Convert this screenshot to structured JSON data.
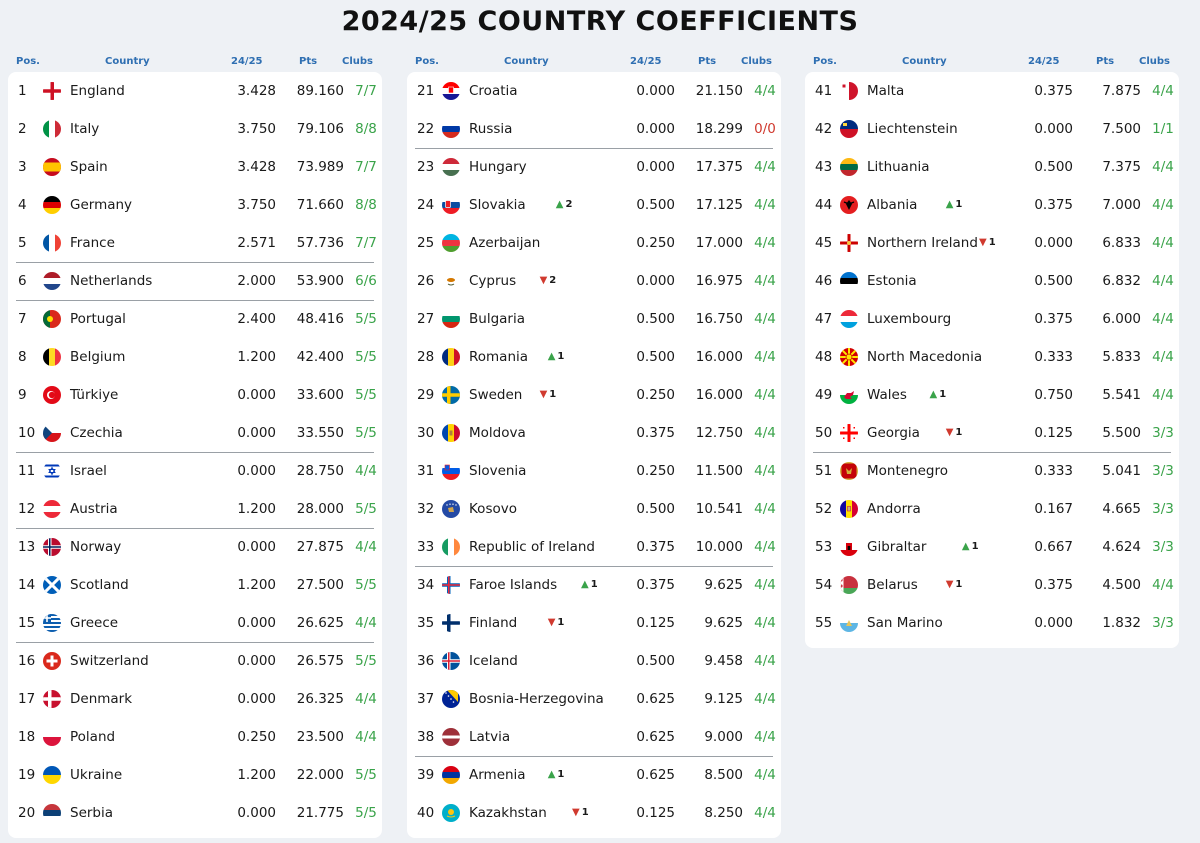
{
  "title": "2024/25 COUNTRY COEFFICIENTS",
  "headers": {
    "pos": "Pos.",
    "country": "Country",
    "season": "24/25",
    "pts": "Pts",
    "clubs": "Clubs"
  },
  "columns": [
    {
      "rows": [
        {
          "pos": "1",
          "flag": "england",
          "name": "England",
          "move": "",
          "coef": "3.428",
          "pts": "89.160",
          "clubs": "7/7"
        },
        {
          "pos": "2",
          "flag": "italy",
          "name": "Italy",
          "move": "",
          "coef": "3.750",
          "pts": "79.106",
          "clubs": "8/8"
        },
        {
          "pos": "3",
          "flag": "spain",
          "name": "Spain",
          "move": "",
          "coef": "3.428",
          "pts": "73.989",
          "clubs": "7/7"
        },
        {
          "pos": "4",
          "flag": "germany",
          "name": "Germany",
          "move": "",
          "coef": "3.750",
          "pts": "71.660",
          "clubs": "8/8"
        },
        {
          "pos": "5",
          "flag": "france",
          "name": "France",
          "move": "",
          "coef": "2.571",
          "pts": "57.736",
          "clubs": "7/7",
          "sep": true
        },
        {
          "pos": "6",
          "flag": "netherlands",
          "name": "Netherlands",
          "move": "",
          "coef": "2.000",
          "pts": "53.900",
          "clubs": "6/6",
          "sep": true
        },
        {
          "pos": "7",
          "flag": "portugal",
          "name": "Portugal",
          "move": "",
          "coef": "2.400",
          "pts": "48.416",
          "clubs": "5/5"
        },
        {
          "pos": "8",
          "flag": "belgium",
          "name": "Belgium",
          "move": "",
          "coef": "1.200",
          "pts": "42.400",
          "clubs": "5/5"
        },
        {
          "pos": "9",
          "flag": "turkiye",
          "name": "Türkiye",
          "move": "",
          "coef": "0.000",
          "pts": "33.600",
          "clubs": "5/5"
        },
        {
          "pos": "10",
          "flag": "czechia",
          "name": "Czechia",
          "move": "",
          "coef": "0.000",
          "pts": "33.550",
          "clubs": "5/5",
          "sep": true
        },
        {
          "pos": "11",
          "flag": "israel",
          "name": "Israel",
          "move": "",
          "coef": "0.000",
          "pts": "28.750",
          "clubs": "4/4"
        },
        {
          "pos": "12",
          "flag": "austria",
          "name": "Austria",
          "move": "",
          "coef": "1.200",
          "pts": "28.000",
          "clubs": "5/5",
          "sep": true
        },
        {
          "pos": "13",
          "flag": "norway",
          "name": "Norway",
          "move": "",
          "coef": "0.000",
          "pts": "27.875",
          "clubs": "4/4"
        },
        {
          "pos": "14",
          "flag": "scotland",
          "name": "Scotland",
          "move": "",
          "coef": "1.200",
          "pts": "27.500",
          "clubs": "5/5"
        },
        {
          "pos": "15",
          "flag": "greece",
          "name": "Greece",
          "move": "",
          "coef": "0.000",
          "pts": "26.625",
          "clubs": "4/4",
          "sep": true
        },
        {
          "pos": "16",
          "flag": "switzerland",
          "name": "Switzerland",
          "move": "",
          "coef": "0.000",
          "pts": "26.575",
          "clubs": "5/5"
        },
        {
          "pos": "17",
          "flag": "denmark",
          "name": "Denmark",
          "move": "",
          "coef": "0.000",
          "pts": "26.325",
          "clubs": "4/4"
        },
        {
          "pos": "18",
          "flag": "poland",
          "name": "Poland",
          "move": "",
          "coef": "0.250",
          "pts": "23.500",
          "clubs": "4/4"
        },
        {
          "pos": "19",
          "flag": "ukraine",
          "name": "Ukraine",
          "move": "",
          "coef": "1.200",
          "pts": "22.000",
          "clubs": "5/5"
        },
        {
          "pos": "20",
          "flag": "serbia",
          "name": "Serbia",
          "move": "",
          "coef": "0.000",
          "pts": "21.775",
          "clubs": "5/5"
        }
      ]
    },
    {
      "rows": [
        {
          "pos": "21",
          "flag": "croatia",
          "name": "Croatia",
          "move": "",
          "coef": "0.000",
          "pts": "21.150",
          "clubs": "4/4"
        },
        {
          "pos": "22",
          "flag": "russia",
          "name": "Russia",
          "move": "",
          "coef": "0.000",
          "pts": "18.299",
          "clubs": "0/0",
          "sep": true
        },
        {
          "pos": "23",
          "flag": "hungary",
          "name": "Hungary",
          "move": "",
          "coef": "0.000",
          "pts": "17.375",
          "clubs": "4/4"
        },
        {
          "pos": "24",
          "flag": "slovakia",
          "name": "Slovakia",
          "move": "up",
          "moveval": "2",
          "coef": "0.500",
          "pts": "17.125",
          "clubs": "4/4"
        },
        {
          "pos": "25",
          "flag": "azerbaijan",
          "name": "Azerbaijan",
          "move": "",
          "coef": "0.250",
          "pts": "17.000",
          "clubs": "4/4"
        },
        {
          "pos": "26",
          "flag": "cyprus",
          "name": "Cyprus",
          "move": "down",
          "moveval": "2",
          "coef": "0.000",
          "pts": "16.975",
          "clubs": "4/4"
        },
        {
          "pos": "27",
          "flag": "bulgaria",
          "name": "Bulgaria",
          "move": "",
          "coef": "0.500",
          "pts": "16.750",
          "clubs": "4/4"
        },
        {
          "pos": "28",
          "flag": "romania",
          "name": "Romania",
          "move": "up",
          "moveval": "1",
          "coef": "0.500",
          "pts": "16.000",
          "clubs": "4/4"
        },
        {
          "pos": "29",
          "flag": "sweden",
          "name": "Sweden",
          "move": "down",
          "moveval": "1",
          "coef": "0.250",
          "pts": "16.000",
          "clubs": "4/4"
        },
        {
          "pos": "30",
          "flag": "moldova",
          "name": "Moldova",
          "move": "",
          "coef": "0.375",
          "pts": "12.750",
          "clubs": "4/4"
        },
        {
          "pos": "31",
          "flag": "slovenia",
          "name": "Slovenia",
          "move": "",
          "coef": "0.250",
          "pts": "11.500",
          "clubs": "4/4"
        },
        {
          "pos": "32",
          "flag": "kosovo",
          "name": "Kosovo",
          "move": "",
          "coef": "0.500",
          "pts": "10.541",
          "clubs": "4/4"
        },
        {
          "pos": "33",
          "flag": "ireland",
          "name": "Republic of Ireland",
          "move": "",
          "coef": "0.375",
          "pts": "10.000",
          "clubs": "4/4",
          "sep": true
        },
        {
          "pos": "34",
          "flag": "faroe",
          "name": "Faroe Islands",
          "move": "up",
          "moveval": "1",
          "coef": "0.375",
          "pts": "9.625",
          "clubs": "4/4"
        },
        {
          "pos": "35",
          "flag": "finland",
          "name": "Finland",
          "move": "down",
          "moveval": "1",
          "coef": "0.125",
          "pts": "9.625",
          "clubs": "4/4"
        },
        {
          "pos": "36",
          "flag": "iceland",
          "name": "Iceland",
          "move": "",
          "coef": "0.500",
          "pts": "9.458",
          "clubs": "4/4"
        },
        {
          "pos": "37",
          "flag": "bosnia",
          "name": "Bosnia-Herzegovina",
          "move": "",
          "coef": "0.625",
          "pts": "9.125",
          "clubs": "4/4"
        },
        {
          "pos": "38",
          "flag": "latvia",
          "name": "Latvia",
          "move": "",
          "coef": "0.625",
          "pts": "9.000",
          "clubs": "4/4",
          "sep": true
        },
        {
          "pos": "39",
          "flag": "armenia",
          "name": "Armenia",
          "move": "up",
          "moveval": "1",
          "coef": "0.625",
          "pts": "8.500",
          "clubs": "4/4"
        },
        {
          "pos": "40",
          "flag": "kazakhstan",
          "name": "Kazakhstan",
          "move": "down",
          "moveval": "1",
          "coef": "0.125",
          "pts": "8.250",
          "clubs": "4/4"
        }
      ]
    },
    {
      "rows": [
        {
          "pos": "41",
          "flag": "malta",
          "name": "Malta",
          "move": "",
          "coef": "0.375",
          "pts": "7.875",
          "clubs": "4/4"
        },
        {
          "pos": "42",
          "flag": "liechtenstein",
          "name": "Liechtenstein",
          "move": "",
          "coef": "0.000",
          "pts": "7.500",
          "clubs": "1/1"
        },
        {
          "pos": "43",
          "flag": "lithuania",
          "name": "Lithuania",
          "move": "",
          "coef": "0.500",
          "pts": "7.375",
          "clubs": "4/4"
        },
        {
          "pos": "44",
          "flag": "albania",
          "name": "Albania",
          "move": "up",
          "moveval": "1",
          "coef": "0.375",
          "pts": "7.000",
          "clubs": "4/4"
        },
        {
          "pos": "45",
          "flag": "nireland",
          "name": "Northern Ireland",
          "move": "down",
          "moveval": "1",
          "coef": "0.000",
          "pts": "6.833",
          "clubs": "4/4"
        },
        {
          "pos": "46",
          "flag": "estonia",
          "name": "Estonia",
          "move": "",
          "coef": "0.500",
          "pts": "6.832",
          "clubs": "4/4"
        },
        {
          "pos": "47",
          "flag": "luxembourg",
          "name": "Luxembourg",
          "move": "",
          "coef": "0.375",
          "pts": "6.000",
          "clubs": "4/4"
        },
        {
          "pos": "48",
          "flag": "northmacedonia",
          "name": "North Macedonia",
          "move": "",
          "coef": "0.333",
          "pts": "5.833",
          "clubs": "4/4"
        },
        {
          "pos": "49",
          "flag": "wales",
          "name": "Wales",
          "move": "up",
          "moveval": "1",
          "coef": "0.750",
          "pts": "5.541",
          "clubs": "4/4"
        },
        {
          "pos": "50",
          "flag": "georgia",
          "name": "Georgia",
          "move": "down",
          "moveval": "1",
          "coef": "0.125",
          "pts": "5.500",
          "clubs": "3/3",
          "sep": true
        },
        {
          "pos": "51",
          "flag": "montenegro",
          "name": "Montenegro",
          "move": "",
          "coef": "0.333",
          "pts": "5.041",
          "clubs": "3/3"
        },
        {
          "pos": "52",
          "flag": "andorra",
          "name": "Andorra",
          "move": "",
          "coef": "0.167",
          "pts": "4.665",
          "clubs": "3/3"
        },
        {
          "pos": "53",
          "flag": "gibraltar",
          "name": "Gibraltar",
          "move": "up",
          "moveval": "1",
          "coef": "0.667",
          "pts": "4.624",
          "clubs": "3/3"
        },
        {
          "pos": "54",
          "flag": "belarus",
          "name": "Belarus",
          "move": "down",
          "moveval": "1",
          "coef": "0.375",
          "pts": "4.500",
          "clubs": "4/4"
        },
        {
          "pos": "55",
          "flag": "sanmarino",
          "name": "San Marino",
          "move": "",
          "coef": "0.000",
          "pts": "1.832",
          "clubs": "3/3"
        }
      ]
    }
  ],
  "colors": {
    "header_blue": "#2f6fb2",
    "clubs_green": "#3aa34a",
    "clubs_red": "#d03a2f",
    "up_green": "#3aa34a",
    "down_red": "#d03a2f"
  }
}
